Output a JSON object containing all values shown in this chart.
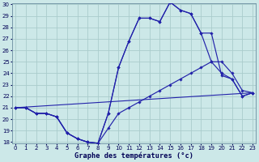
{
  "title": "Graphe des températures (°c)",
  "bg": "#cce8e8",
  "grid_color": "#aacccc",
  "lc": "#2222aa",
  "xlim": [
    0,
    23
  ],
  "ylim": [
    18,
    30
  ],
  "xtick_labels": [
    "0",
    "1",
    "2",
    "3",
    "4",
    "5",
    "6",
    "7",
    "8",
    "9",
    "10",
    "11",
    "12",
    "13",
    "14",
    "15",
    "16",
    "17",
    "18",
    "19",
    "20",
    "21",
    "22",
    "23"
  ],
  "xticks": [
    0,
    1,
    2,
    3,
    4,
    5,
    6,
    7,
    8,
    9,
    10,
    11,
    12,
    13,
    14,
    15,
    16,
    17,
    18,
    19,
    20,
    21,
    22,
    23
  ],
  "yticks": [
    18,
    19,
    20,
    21,
    22,
    23,
    24,
    25,
    26,
    27,
    28,
    29,
    30
  ],
  "series": [
    {
      "x": [
        0,
        1,
        2,
        3,
        4,
        5,
        6,
        7,
        8,
        9,
        10,
        11,
        12,
        13,
        14,
        15,
        16,
        17,
        18,
        19,
        20,
        21,
        22,
        23
      ],
      "y": [
        21,
        21,
        20.5,
        20.5,
        20.2,
        18.8,
        18.3,
        18.0,
        17.9,
        19.2,
        20.5,
        21.0,
        21.5,
        22.0,
        22.5,
        23.0,
        23.5,
        24.0,
        24.5,
        25.0,
        25.0,
        24.0,
        22.5,
        22.3
      ]
    },
    {
      "x": [
        0,
        1,
        2,
        3,
        4,
        5,
        6,
        7,
        8,
        9,
        10,
        11,
        12,
        13,
        14,
        15,
        16,
        17,
        18,
        19,
        20,
        21,
        22,
        23
      ],
      "y": [
        21,
        21,
        20.5,
        20.5,
        20.2,
        18.8,
        18.3,
        18.0,
        17.9,
        20.5,
        24.5,
        26.8,
        28.8,
        28.8,
        28.5,
        30.2,
        29.5,
        29.2,
        27.5,
        27.5,
        23.8,
        23.5,
        22.0,
        22.3
      ]
    },
    {
      "x": [
        0,
        1,
        2,
        3,
        4,
        5,
        6,
        7,
        8,
        9,
        10,
        11,
        12,
        13,
        14,
        15,
        16,
        17,
        18,
        19,
        20,
        21,
        22,
        23
      ],
      "y": [
        21,
        21,
        20.5,
        20.5,
        20.2,
        18.8,
        18.3,
        18.0,
        17.9,
        20.5,
        24.5,
        26.8,
        28.8,
        28.8,
        28.5,
        30.2,
        29.5,
        29.2,
        27.5,
        25.0,
        24.0,
        23.5,
        22.0,
        22.3
      ]
    },
    {
      "x": [
        0,
        23
      ],
      "y": [
        21,
        22.3
      ]
    }
  ]
}
